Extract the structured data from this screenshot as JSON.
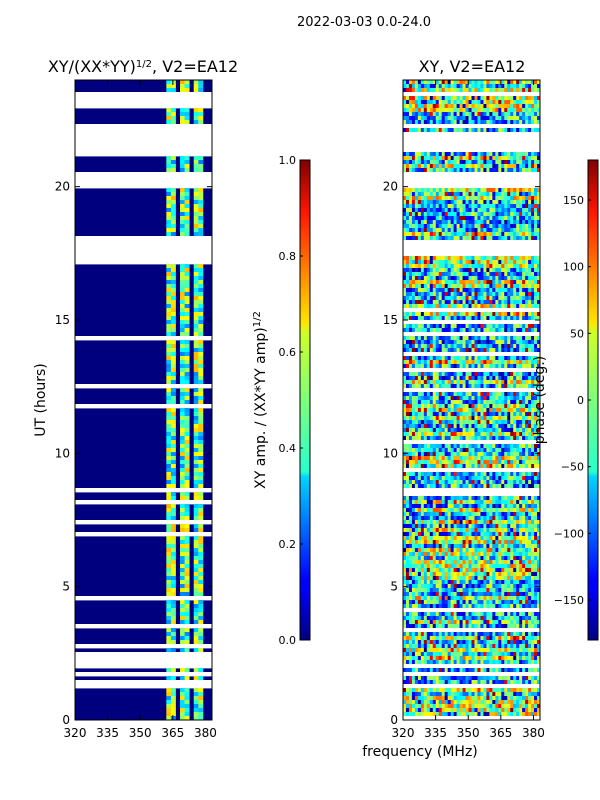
{
  "figure": {
    "suptitle": "2022-03-03 0.0-24.0"
  },
  "chart_data": [
    {
      "type": "heatmap",
      "title": "XY/(XX*YY)^{1/2}, V2=EA12",
      "title_main": "XY/(XX*YY)",
      "title_exp": "1/2",
      "title_suffix": ", V2=EA12",
      "xlabel": "",
      "ylabel": "UT (hours)",
      "xlim": [
        320,
        383
      ],
      "ylim": [
        0,
        24
      ],
      "x_ticks": [
        320,
        335,
        350,
        365,
        380
      ],
      "y_ticks": [
        0,
        5,
        10,
        15,
        20
      ],
      "colorbar": {
        "label": "XY amp. / (XX*YY amp)^{1/2}",
        "label_main": "XY amp. / (XX*YY amp)",
        "label_exp": "1/2",
        "range": [
          0,
          1
        ],
        "ticks": [
          "0.0",
          "0.2",
          "0.4",
          "0.6",
          "0.8",
          "1.0"
        ],
        "cmap": "jet"
      },
      "gap_bands_hours": [
        [
          22.9,
          23.6
        ],
        [
          21.3,
          22.4
        ],
        [
          19.9,
          20.6
        ],
        [
          17.4,
          18.2
        ]
      ],
      "data_description": "mostly near 0 below 362 MHz, higher amplitude (0.3-0.7) striped channels between 362 and 380 MHz"
    },
    {
      "type": "heatmap",
      "title": "XY, V2=EA12",
      "xlabel": "frequency (MHz)",
      "ylabel": "",
      "xlim": [
        320,
        383
      ],
      "ylim": [
        0,
        24
      ],
      "x_ticks": [
        320,
        335,
        350,
        365,
        380
      ],
      "y_ticks": [
        0,
        5,
        10,
        15,
        20
      ],
      "colorbar": {
        "label": "phase (deg.)",
        "range": [
          -180,
          180
        ],
        "ticks": [
          "−150",
          "−100",
          "−50",
          "0",
          "50",
          "100",
          "150"
        ],
        "cmap": "jet"
      },
      "gap_bands_hours": [
        [
          22.2,
          22.4
        ],
        [
          21.3,
          22.1
        ],
        [
          19.9,
          20.5
        ],
        [
          17.4,
          18.0
        ]
      ],
      "data_description": "noisy phase, mostly between -60 and 120 deg with red-orange and green-cyan patches"
    }
  ]
}
